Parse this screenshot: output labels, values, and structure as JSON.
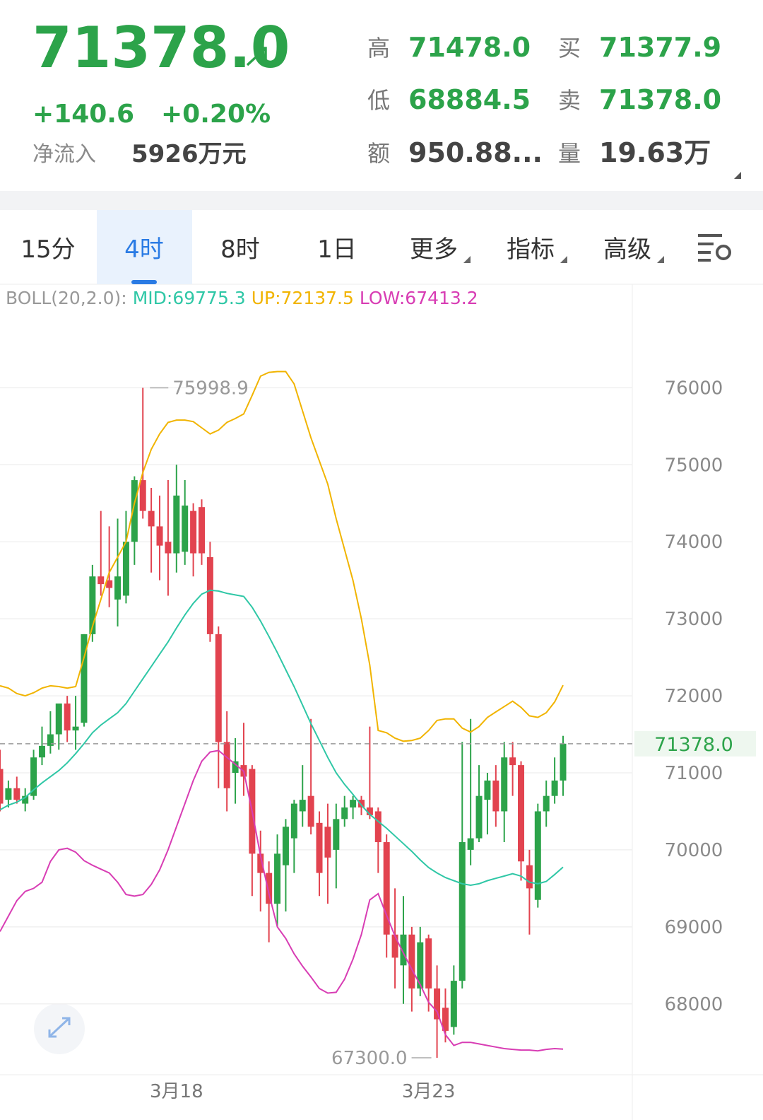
{
  "header": {
    "price": "71378.0",
    "change": "+140.6",
    "change_pct": "+0.20%",
    "net_inflow_label": "净流入",
    "net_inflow": "5926万元",
    "stats": [
      {
        "label": "高",
        "value": "71478.0"
      },
      {
        "label": "买",
        "value": "71377.9"
      },
      {
        "label": "低",
        "value": "68884.5"
      },
      {
        "label": "卖",
        "value": "71378.0"
      },
      {
        "label": "额",
        "value": "950.88..."
      },
      {
        "label": "量",
        "value": "19.63万"
      }
    ]
  },
  "tabs": [
    "15分",
    "4时",
    "8时",
    "1日",
    "更多",
    "指标",
    "高级"
  ],
  "selected_tab": 1,
  "chart_data": {
    "type": "candlestick",
    "legend": [
      "BOLL(20,2.0):",
      "MID:69775.3",
      "UP:72137.5",
      "LOW:67413.2"
    ],
    "categories": [
      null,
      null,
      null,
      null,
      null,
      null,
      null,
      null,
      null,
      null,
      null,
      null,
      null,
      null,
      null,
      null,
      null,
      null,
      null,
      null,
      null,
      "3月18",
      null,
      null,
      null,
      null,
      null,
      null,
      null,
      null,
      null,
      null,
      null,
      null,
      null,
      null,
      null,
      null,
      null,
      null,
      null,
      null,
      null,
      null,
      null,
      null,
      null,
      null,
      null,
      null,
      null,
      "3月23",
      null,
      null,
      null,
      null,
      null,
      null,
      null,
      null,
      null,
      null,
      null,
      null,
      null,
      null,
      null,
      null
    ],
    "open": [
      71050,
      70650,
      70800,
      70600,
      70700,
      71200,
      71350,
      71500,
      71900,
      71550,
      71650,
      72800,
      73550,
      73500,
      73250,
      73300,
      74000,
      74800,
      74400,
      74200,
      74000,
      73850,
      73870,
      74400,
      74450,
      73800,
      72800,
      71400,
      71000,
      71100,
      71050,
      69950,
      69700,
      69300,
      69800,
      70150,
      70500,
      70700,
      70350,
      70300,
      70000,
      70400,
      70550,
      70650,
      70550,
      70500,
      70100,
      68900,
      68500,
      68900,
      68200,
      68850,
      68200,
      67950,
      67700,
      68300,
      70000,
      70150,
      70650,
      70900,
      70500,
      71200,
      71100,
      69800,
      69350,
      70500,
      70700,
      70900
    ],
    "high": [
      71300,
      70900,
      70950,
      70800,
      71300,
      71600,
      71800,
      71900,
      72000,
      72000,
      72800,
      73700,
      74400,
      74200,
      74300,
      74400,
      74850,
      75998.9,
      74700,
      74600,
      74800,
      75000,
      74800,
      74500,
      74550,
      74000,
      72900,
      71800,
      71450,
      71650,
      71100,
      70250,
      69850,
      70200,
      70400,
      70650,
      71100,
      71700,
      70500,
      70600,
      70600,
      70700,
      70700,
      70700,
      71600,
      70550,
      70200,
      69500,
      69400,
      69000,
      69000,
      68900,
      68500,
      68200,
      68500,
      71400,
      71700,
      71100,
      71000,
      71100,
      71400,
      71400,
      71150,
      70000,
      70600,
      70900,
      71200,
      71480
    ],
    "low": [
      70500,
      70550,
      70600,
      70500,
      70650,
      71100,
      71250,
      71300,
      71400,
      71300,
      71600,
      72700,
      73300,
      73150,
      72900,
      73200,
      73700,
      74300,
      73600,
      73500,
      73300,
      73600,
      73700,
      73550,
      73700,
      72700,
      70800,
      70500,
      70600,
      70700,
      69400,
      69200,
      68800,
      69000,
      69200,
      69700,
      70300,
      70200,
      69400,
      69300,
      69500,
      70300,
      70400,
      70450,
      70400,
      69700,
      68600,
      68200,
      68000,
      67900,
      68100,
      67900,
      67300,
      67500,
      67600,
      68200,
      69800,
      70100,
      70200,
      70300,
      70100,
      70700,
      69600,
      68900,
      69250,
      70300,
      70600,
      70700
    ],
    "close": [
      70600,
      70800,
      70650,
      70700,
      71200,
      71350,
      71500,
      71900,
      71550,
      71600,
      72800,
      73550,
      73450,
      73400,
      73550,
      74000,
      74800,
      74400,
      74200,
      73950,
      73850,
      74600,
      74470,
      73850,
      73850,
      72800,
      71400,
      70800,
      71150,
      70950,
      69950,
      69700,
      69300,
      69950,
      70300,
      70600,
      70650,
      70300,
      69700,
      69900,
      70400,
      70550,
      70650,
      70550,
      70450,
      70100,
      68900,
      68600,
      68900,
      68200,
      68800,
      68200,
      67800,
      67650,
      68300,
      70100,
      70150,
      70700,
      70900,
      70500,
      71200,
      71100,
      69850,
      69500,
      70500,
      70700,
      70900,
      71378
    ],
    "up_color": "#2ca34a",
    "down_color": "#e2434f",
    "boll": [
      {
        "color": "#2fc7a6",
        "values": [
          70520,
          70580,
          70620,
          70680,
          70780,
          70870,
          70950,
          71030,
          71130,
          71250,
          71380,
          71520,
          71620,
          71700,
          71780,
          71900,
          72060,
          72220,
          72380,
          72540,
          72700,
          72880,
          73050,
          73200,
          73320,
          73370,
          73360,
          73330,
          73310,
          73290,
          73150,
          72970,
          72770,
          72560,
          72340,
          72120,
          71880,
          71640,
          71420,
          71200,
          71000,
          70850,
          70720,
          70580,
          70460,
          70370,
          70280,
          70180,
          70080,
          69980,
          69870,
          69770,
          69700,
          69640,
          69600,
          69560,
          69540,
          69560,
          69600,
          69630,
          69660,
          69690,
          69660,
          69580,
          69560,
          69590,
          69680,
          69775.3
        ]
      },
      {
        "color": "#f1b400",
        "values": [
          72130,
          72100,
          72030,
          72000,
          72040,
          72100,
          72130,
          72120,
          72100,
          72120,
          72500,
          72900,
          73250,
          73600,
          73800,
          74000,
          74500,
          74900,
          75200,
          75400,
          75550,
          75580,
          75580,
          75560,
          75480,
          75400,
          75450,
          75550,
          75600,
          75660,
          75900,
          76150,
          76200,
          76210,
          76210,
          76050,
          75700,
          75350,
          75050,
          74750,
          74300,
          73900,
          73500,
          73000,
          72400,
          71550,
          71520,
          71450,
          71410,
          71420,
          71450,
          71550,
          71680,
          71700,
          71700,
          71580,
          71530,
          71600,
          71720,
          71790,
          71860,
          71930,
          71850,
          71740,
          71720,
          71780,
          71920,
          72137.5
        ]
      },
      {
        "color": "#d83db4",
        "values": [
          68940,
          69140,
          69340,
          69460,
          69500,
          69580,
          69850,
          70000,
          70020,
          69970,
          69860,
          69800,
          69750,
          69700,
          69580,
          69420,
          69400,
          69420,
          69550,
          69740,
          70000,
          70300,
          70600,
          70900,
          71150,
          71270,
          71290,
          71200,
          71110,
          71020,
          70500,
          69920,
          69430,
          69000,
          68850,
          68650,
          68490,
          68350,
          68200,
          68140,
          68150,
          68320,
          68580,
          68900,
          69350,
          69430,
          69150,
          68880,
          68660,
          68450,
          68250,
          68020,
          67900,
          67600,
          67460,
          67500,
          67500,
          67480,
          67460,
          67440,
          67420,
          67410,
          67400,
          67400,
          67390,
          67410,
          67420,
          67413.2
        ]
      }
    ],
    "ylim": [
      67080,
      77270
    ],
    "yticks": [
      68000,
      69000,
      70000,
      71000,
      72000,
      73000,
      74000,
      75000,
      76000
    ],
    "grid": true,
    "annotations": {
      "max": {
        "index": 17,
        "value": 75998.9,
        "label": "75998.9"
      },
      "min": {
        "index": 52,
        "value": 67300,
        "label": "67300.0"
      },
      "last": {
        "value": 71378,
        "label": "71378.0"
      }
    }
  }
}
